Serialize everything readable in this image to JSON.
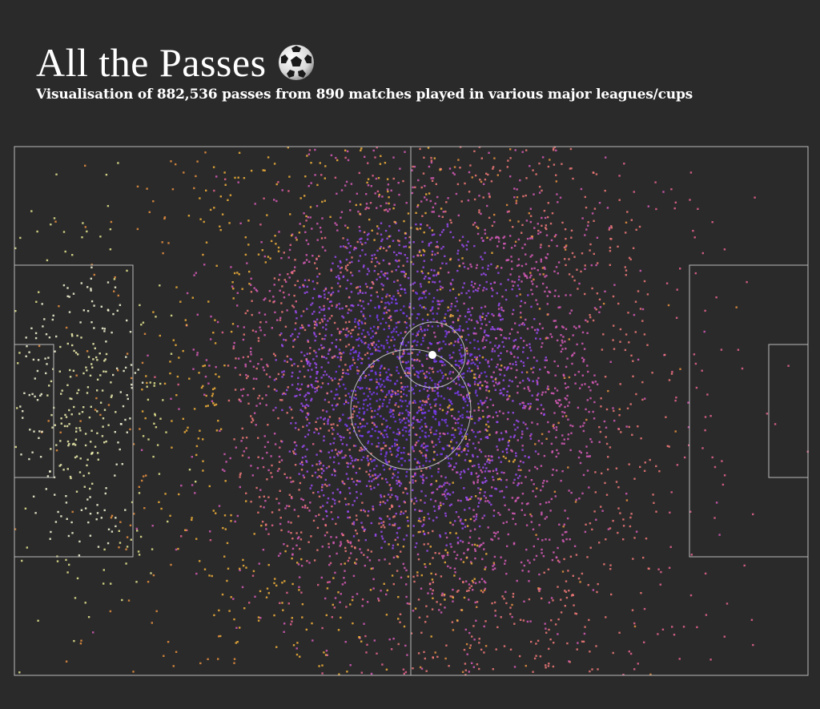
{
  "header": {
    "title": "All the Passes",
    "subtitle": "Visualisation of 882,536 passes from 890 matches played in various major leagues/cups",
    "title_icon": "soccer-ball-icon"
  },
  "colors": {
    "background": "#2a2a2a",
    "pitch_lines": "#bbbbbb",
    "ball_marker": "#ffffff",
    "palette_high_density": "#7a3cf0",
    "palette_mid_density": "#d65ab8",
    "palette_low_mid_density": "#f07878",
    "palette_low_density": "#f2b03a",
    "palette_outer": "#f0f0b0"
  },
  "chart_data": {
    "type": "scatter",
    "title": "All the Passes",
    "subtitle": "Visualisation of 882,536 passes from 890 matches played in various major leagues/cups",
    "description_counts": {
      "passes": 882536,
      "matches": 890
    },
    "xlim": [
      0,
      120
    ],
    "ylim": [
      0,
      80
    ],
    "grid": false,
    "legend": "none",
    "color_encoding": "point density",
    "clusters": [
      {
        "name_hidden": true,
        "x": 60,
        "y": 36,
        "spread_x": 13,
        "spread_y": 16,
        "points": 2600,
        "density": "high"
      },
      {
        "name_hidden": true,
        "x": 74,
        "y": 40,
        "spread_x": 16,
        "spread_y": 30,
        "points": 1600,
        "density": "mid"
      },
      {
        "name_hidden": true,
        "x": 48,
        "y": 38,
        "spread_x": 18,
        "spread_y": 28,
        "points": 1200,
        "density": "low"
      },
      {
        "name_hidden": true,
        "x": 10,
        "y": 40,
        "spread_x": 6,
        "spread_y": 14,
        "points": 380,
        "density": "outer"
      }
    ]
  }
}
